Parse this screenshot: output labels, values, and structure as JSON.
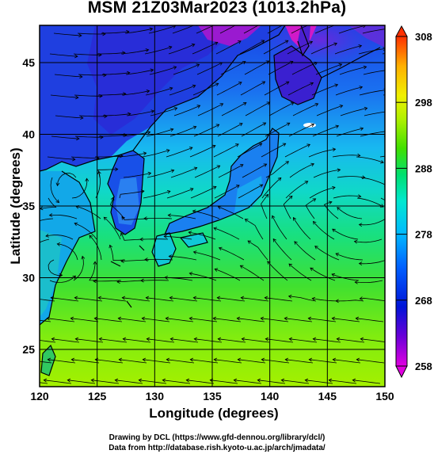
{
  "title": "MSM 21Z03Mar2023 (1013.2hPa)",
  "axes": {
    "xlabel": "Longitude (degrees)",
    "ylabel": "Latitude  (degrees)",
    "xticks": [
      "120",
      "125",
      "130",
      "135",
      "140",
      "145",
      "150"
    ],
    "yticks": [
      "25",
      "30",
      "35",
      "40",
      "45"
    ]
  },
  "colorbar": {
    "labels": [
      "308",
      "298",
      "288",
      "278",
      "268",
      "258"
    ],
    "min": 258,
    "max": 308,
    "colors": [
      "#e000e0",
      "#6a00d8",
      "#0014d8",
      "#0060ff",
      "#00b8ff",
      "#00e8d0",
      "#00e070",
      "#40e000",
      "#b0f000",
      "#f0f000",
      "#ffb000",
      "#ff3000"
    ]
  },
  "credits": {
    "line1": "Drawing by DCL (https://www.gfd-dennou.org/library/dcl/)",
    "line2": "Data from http://database.rish.kyoto-u.ac.jp/arch/jmadata/"
  },
  "chart_data": {
    "type": "heatmap",
    "title": "MSM 21Z03Mar2023 (1013.2hPa)",
    "xlabel": "Longitude (degrees)",
    "ylabel": "Latitude  (degrees)",
    "xlim": [
      120,
      150
    ],
    "ylim": [
      22.4,
      47.6
    ],
    "colorbar_range": [
      258,
      308
    ],
    "colorbar_ticks": [
      258,
      268,
      278,
      288,
      298,
      308
    ],
    "grid": true,
    "overlay": "streamlines"
  }
}
